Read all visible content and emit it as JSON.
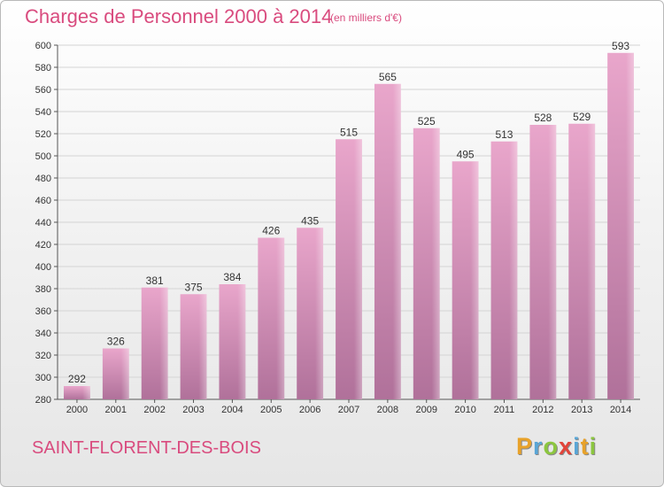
{
  "chart_data": {
    "type": "bar",
    "title": "Charges de Personnel 2000 à 2014",
    "subtitle": "(en milliers d'€)",
    "categories": [
      "2000",
      "2001",
      "2002",
      "2003",
      "2004",
      "2005",
      "2006",
      "2007",
      "2008",
      "2009",
      "2010",
      "2011",
      "2012",
      "2013",
      "2014"
    ],
    "values": [
      292,
      326,
      381,
      375,
      384,
      426,
      435,
      515,
      565,
      525,
      495,
      513,
      528,
      529,
      593
    ],
    "ylim": [
      280,
      600
    ],
    "yticks": [
      280,
      300,
      320,
      340,
      360,
      380,
      400,
      420,
      440,
      460,
      480,
      500,
      520,
      540,
      560,
      580,
      600
    ],
    "grid": true,
    "xlabel": "",
    "ylabel": ""
  },
  "footer": {
    "city": "SAINT-FLORENT-DES-BOIS",
    "logo_letters": [
      "P",
      "r",
      "o",
      "x",
      "i",
      "t",
      "i"
    ]
  },
  "colors": {
    "bar_top": "#e9a6cb",
    "bar_bottom": "#b0719a",
    "accent_text": "#d94b7e",
    "grid": "#d4d4d4"
  }
}
